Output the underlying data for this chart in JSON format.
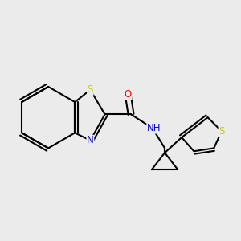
{
  "background_color": "#ebebeb",
  "bond_color": "#000000",
  "bond_width": 1.5,
  "atom_colors": {
    "S": "#cccc00",
    "N": "#0000cc",
    "O": "#ff0000",
    "NH": "#0000cc"
  },
  "font_size": 8.5
}
